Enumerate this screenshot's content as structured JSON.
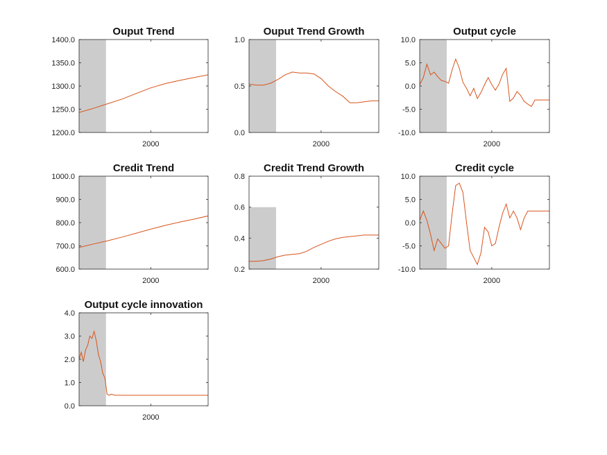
{
  "figure": {
    "background": "#ffffff",
    "series_color": "#d95319",
    "shade_color": "#cccccc"
  },
  "chart_data": [
    {
      "type": "line",
      "title": "Ouput Trend",
      "xlim": [
        1990,
        2008
      ],
      "ylim": [
        1200,
        1400
      ],
      "y_decimals": 1,
      "yticks": [
        1200,
        1250,
        1300,
        1350,
        1400
      ],
      "xticks": [
        2000
      ],
      "xtick_labels": [
        "2000"
      ],
      "shaded": [
        1990,
        1993.75
      ],
      "series": [
        {
          "x": [
            1990,
            1992,
            1994,
            1996,
            1998,
            2000,
            2002,
            2004,
            2006,
            2008
          ],
          "y": [
            1243,
            1252,
            1262,
            1272,
            1284,
            1296,
            1305,
            1312,
            1318,
            1324
          ]
        }
      ]
    },
    {
      "type": "line",
      "title": "Ouput Trend Growth",
      "xlim": [
        1990,
        2008
      ],
      "ylim": [
        0,
        1
      ],
      "y_decimals": 1,
      "yticks": [
        0,
        0.5,
        1.0
      ],
      "xticks": [
        2000
      ],
      "xtick_labels": [
        "2000"
      ],
      "shaded": [
        1990,
        1993.75
      ],
      "series": [
        {
          "x": [
            1990,
            1991,
            1992,
            1993,
            1994,
            1995,
            1996,
            1997,
            1998,
            1999,
            2000,
            2001,
            2002,
            2003,
            2004,
            2005,
            2006,
            2007,
            2008
          ],
          "y": [
            0.52,
            0.51,
            0.51,
            0.53,
            0.57,
            0.62,
            0.65,
            0.64,
            0.64,
            0.63,
            0.58,
            0.5,
            0.44,
            0.39,
            0.32,
            0.32,
            0.33,
            0.34,
            0.34
          ]
        }
      ]
    },
    {
      "type": "line",
      "title": "Output cycle",
      "xlim": [
        1990,
        2008
      ],
      "ylim": [
        -10,
        10
      ],
      "y_decimals": 1,
      "yticks": [
        -10,
        -5,
        0,
        5,
        10
      ],
      "xticks": [
        2000
      ],
      "xtick_labels": [
        "2000"
      ],
      "shaded": [
        1990,
        1993.75
      ],
      "series": [
        {
          "x": [
            1990,
            1990.5,
            1991,
            1991.5,
            1992,
            1992.5,
            1993,
            1993.5,
            1994,
            1994.5,
            1995,
            1995.5,
            1996,
            1996.5,
            1997,
            1997.5,
            1998,
            1998.5,
            1999,
            1999.5,
            2000,
            2000.5,
            2001,
            2001.5,
            2002,
            2002.5,
            2003,
            2003.5,
            2004,
            2004.5,
            2005,
            2005.5,
            2006,
            2006.5,
            2007,
            2007.5,
            2008
          ],
          "y": [
            0.3,
            1.8,
            4.7,
            2.4,
            3.0,
            2.0,
            1.2,
            1.0,
            0.6,
            3.5,
            5.8,
            3.8,
            0.8,
            -0.5,
            -2.1,
            -0.5,
            -2.7,
            -1.4,
            0.3,
            1.8,
            0.3,
            -0.9,
            0.4,
            2.5,
            3.8,
            -3.3,
            -2.6,
            -1.2,
            -2.0,
            -3.3,
            -3.9,
            -4.4,
            -3.0,
            -3.0,
            -3.0,
            -3.0,
            -3.0
          ]
        }
      ]
    },
    {
      "type": "line",
      "title": "Credit Trend",
      "xlim": [
        1990,
        2008
      ],
      "ylim": [
        600,
        1000
      ],
      "y_decimals": 1,
      "yticks": [
        600,
        700,
        800,
        900,
        1000
      ],
      "xticks": [
        2000
      ],
      "xtick_labels": [
        "2000"
      ],
      "shaded": [
        1990,
        1993.75
      ],
      "series": [
        {
          "x": [
            1990,
            1992,
            1994,
            1996,
            1998,
            2000,
            2002,
            2004,
            2006,
            2008
          ],
          "y": [
            693,
            708,
            722,
            738,
            755,
            772,
            788,
            802,
            815,
            829
          ]
        }
      ]
    },
    {
      "type": "line",
      "title": "Credit Trend Growth",
      "xlim": [
        1990,
        2008
      ],
      "ylim": [
        0.2,
        0.8
      ],
      "y_decimals": 1,
      "yticks": [
        0.2,
        0.4,
        0.6,
        0.8
      ],
      "xticks": [
        2000
      ],
      "xtick_labels": [
        "2000"
      ],
      "shaded": [
        1990,
        1993.75
      ],
      "shaded_top": 0.6,
      "series": [
        {
          "x": [
            1990,
            1991,
            1992,
            1993,
            1994,
            1995,
            1996,
            1997,
            1998,
            1999,
            2000,
            2001,
            2002,
            2003,
            2004,
            2005,
            2006,
            2007,
            2008
          ],
          "y": [
            0.25,
            0.25,
            0.255,
            0.265,
            0.28,
            0.29,
            0.295,
            0.3,
            0.315,
            0.34,
            0.36,
            0.38,
            0.395,
            0.405,
            0.41,
            0.415,
            0.42,
            0.42,
            0.42
          ]
        }
      ]
    },
    {
      "type": "line",
      "title": "Credit cycle",
      "xlim": [
        1990,
        2008
      ],
      "ylim": [
        -10,
        10
      ],
      "y_decimals": 1,
      "yticks": [
        -10,
        -5,
        0,
        5,
        10
      ],
      "xticks": [
        2000
      ],
      "xtick_labels": [
        "2000"
      ],
      "shaded": [
        1990,
        1993.75
      ],
      "series": [
        {
          "x": [
            1990,
            1990.5,
            1991,
            1991.5,
            1992,
            1992.5,
            1993,
            1993.5,
            1994,
            1994.5,
            1995,
            1995.5,
            1996,
            1996.5,
            1997,
            1997.5,
            1998,
            1998.5,
            1999,
            1999.5,
            2000,
            2000.5,
            2001,
            2001.5,
            2002,
            2002.5,
            2003,
            2003.5,
            2004,
            2004.5,
            2005,
            2005.5,
            2006,
            2006.5,
            2007,
            2007.5,
            2008
          ],
          "y": [
            0.5,
            2.5,
            0.5,
            -2.5,
            -6.0,
            -3.5,
            -4.5,
            -5.5,
            -5.0,
            2.0,
            8.0,
            8.5,
            6.5,
            0.0,
            -6.0,
            -7.5,
            -9.0,
            -6.5,
            -1.0,
            -2.0,
            -5.0,
            -4.5,
            -1.0,
            2.0,
            4.0,
            1.0,
            2.5,
            1.0,
            -1.5,
            1.0,
            2.5,
            2.5,
            2.5,
            2.5,
            2.5,
            2.5,
            2.5
          ]
        }
      ]
    },
    {
      "type": "line",
      "title": "Output cycle innovation",
      "xlim": [
        1990,
        2008
      ],
      "ylim": [
        0,
        4
      ],
      "y_decimals": 1,
      "yticks": [
        0,
        1,
        2,
        3,
        4
      ],
      "xticks": [
        2000
      ],
      "xtick_labels": [
        "2000"
      ],
      "shaded": [
        1990,
        1993.75
      ],
      "series": [
        {
          "x": [
            1990,
            1990.3,
            1990.6,
            1990.9,
            1991.2,
            1991.5,
            1991.8,
            1992.1,
            1992.4,
            1992.7,
            1993,
            1993.3,
            1993.6,
            1993.9,
            1994.2,
            1994.5,
            1995,
            1996,
            1998,
            2000,
            2002,
            2004,
            2006,
            2008
          ],
          "y": [
            2.0,
            2.3,
            1.9,
            2.4,
            2.6,
            3.0,
            2.9,
            3.2,
            2.8,
            2.2,
            1.9,
            1.4,
            1.2,
            0.5,
            0.45,
            0.5,
            0.45,
            0.45,
            0.45,
            0.45,
            0.45,
            0.45,
            0.45,
            0.45
          ]
        }
      ]
    }
  ]
}
